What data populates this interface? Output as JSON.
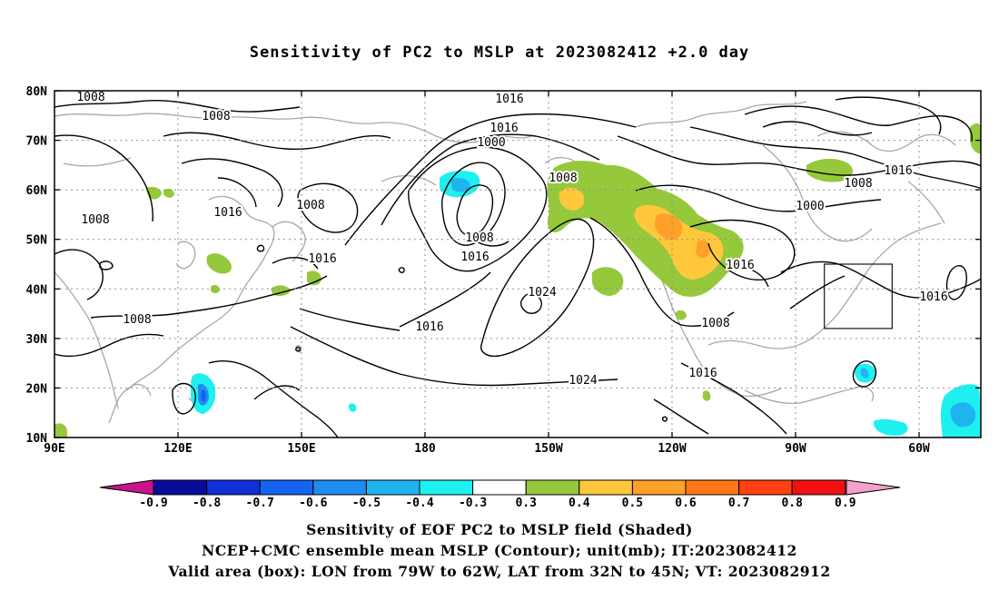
{
  "title": "Sensitivity of PC2 to MSLP at 2023082412 +2.0 day",
  "map": {
    "lat_labels": [
      "80N",
      "70N",
      "60N",
      "50N",
      "40N",
      "30N",
      "20N",
      "10N"
    ],
    "lon_labels": [
      "90E",
      "120E",
      "150E",
      "180",
      "150W",
      "120W",
      "90W",
      "60W"
    ],
    "contour_labels": [
      "1008",
      "1008",
      "1008",
      "1016",
      "1016",
      "1008",
      "1008",
      "1016",
      "1016",
      "1000",
      "1008",
      "1016",
      "1008",
      "1024",
      "1016",
      "1024",
      "1016",
      "1008",
      "1016",
      "1000",
      "1016",
      "1008",
      "1016"
    ],
    "valid_box": {
      "lon_from": -79,
      "lon_to": -62,
      "lat_from": 32,
      "lat_to": 45
    }
  },
  "colorbar": {
    "labels": [
      "-0.9",
      "-0.8",
      "-0.7",
      "-0.6",
      "-0.5",
      "-0.4",
      "-0.3",
      "0.3",
      "0.4",
      "0.5",
      "0.6",
      "0.7",
      "0.8",
      "0.9"
    ],
    "colors": [
      "#0a0a98",
      "#1030d8",
      "#1464f0",
      "#1e8cf0",
      "#1eb4f0",
      "#1ef0f0",
      "#ffffff",
      "#96c83c",
      "#ffc83c",
      "#ffa028",
      "#ff7818",
      "#ff4010",
      "#f01010"
    ],
    "left_arrow_color": "#c8148c",
    "right_arrow_color": "#f5a0c8"
  },
  "captions": [
    "Sensitivity of EOF PC2 to MSLP field (Shaded)",
    "NCEP+CMC ensemble mean MSLP (Contour); unit(mb); IT:2023082412",
    "Valid area (box): LON from 79W to 62W, LAT from 32N to 45N; VT: 2023082912"
  ]
}
